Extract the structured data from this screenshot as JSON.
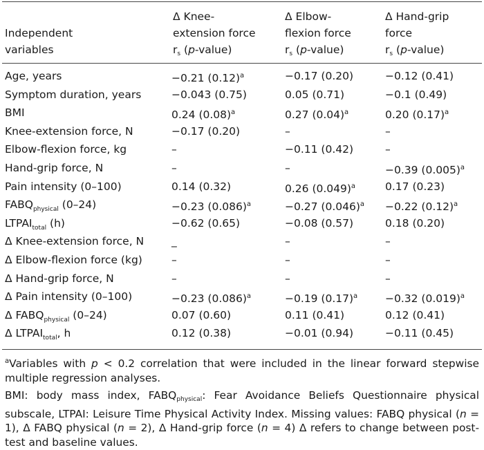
{
  "header": {
    "col0": [
      "Independent",
      "variables"
    ],
    "col1": [
      "Δ Knee-",
      "extension force"
    ],
    "col2": [
      "Δ Elbow-",
      "flexion force"
    ],
    "col3": [
      "Δ Hand-grip",
      "force"
    ],
    "stat_r": "r",
    "stat_sub": "s",
    "stat_open": " (",
    "stat_p": "p",
    "stat_close": "-value)"
  },
  "rows": [
    {
      "label": "Age, years",
      "v1": "−0.21 (0.12)",
      "s1": "a",
      "v2": "−0.17 (0.20)",
      "s2": "",
      "v3": "−0.12 (0.41)",
      "s3": ""
    },
    {
      "label": "Symptom duration, years",
      "v1": "−0.043 (0.75)",
      "s1": "",
      "v2": "0.05 (0.71)",
      "s2": "",
      "v3": "−0.1 (0.49)",
      "s3": ""
    },
    {
      "label": "BMI",
      "v1": "0.24 (0.08)",
      "s1": "a",
      "v2": "0.27 (0.04)",
      "s2": "a",
      "v3": "0.20 (0.17)",
      "s3": "a"
    },
    {
      "label": "Knee-extension force, N",
      "v1": "−0.17 (0.20)",
      "s1": "",
      "v2": "–",
      "s2": "",
      "v3": "–",
      "s3": ""
    },
    {
      "label": "Elbow-flexion force, kg",
      "v1": "–",
      "s1": "",
      "v2": "−0.11 (0.42)",
      "s2": "",
      "v3": "–",
      "s3": ""
    },
    {
      "label": "Hand-grip force, N",
      "v1": "–",
      "s1": "",
      "v2": "–",
      "s2": "",
      "v3": "−0.39 (0.005)",
      "s3": "a"
    },
    {
      "label": "Pain intensity (0–100)",
      "v1": "0.14 (0.32)",
      "s1": "",
      "v2": "0.26 (0.049)",
      "s2": "a",
      "v3": "0.17 (0.23)",
      "s3": ""
    },
    {
      "label": "FABQ",
      "label_sub": "physical",
      "label_after": " (0–24)",
      "v1": "−0.23 (0.086)",
      "s1": "a",
      "v2": "−0.27 (0.046)",
      "s2": "a",
      "v3": "−0.22 (0.12)",
      "s3": "a"
    },
    {
      "label": "LTPAI",
      "label_sub": "total",
      "label_after": " (h)",
      "v1": "−0.62 (0.65)",
      "s1": "",
      "v2": "−0.08 (0.57)",
      "s2": "",
      "v3": "0.18 (0.20)",
      "s3": ""
    },
    {
      "label": "Δ Knee-extension force, N",
      "v1": "_",
      "s1": "",
      "v2": "–",
      "s2": "",
      "v3": "–",
      "s3": ""
    },
    {
      "label": "Δ Elbow-flexion force (kg)",
      "v1": "–",
      "s1": "",
      "v2": "–",
      "s2": "",
      "v3": "–",
      "s3": ""
    },
    {
      "label": "Δ Hand-grip force, N",
      "v1": "–",
      "s1": "",
      "v2": "–",
      "s2": "",
      "v3": "–",
      "s3": ""
    },
    {
      "label": "Δ Pain intensity (0–100)",
      "v1": "−0.23 (0.086)",
      "s1": "a",
      "v2": "−0.19 (0.17)",
      "s2": "a",
      "v3": "−0.32 (0.019)",
      "s3": "a"
    },
    {
      "label": "Δ FABQ",
      "label_sub": "physical",
      "label_after": " (0–24)",
      "v1": "0.07 (0.60)",
      "s1": "",
      "v2": "0.11 (0.41)",
      "s2": "",
      "v3": "0.12 (0.41)",
      "s3": ""
    },
    {
      "label": "Δ LTPAI",
      "label_sub": "total",
      "label_after": ", h",
      "v1": "0.12 (0.38)",
      "s1": "",
      "v2": "−0.01 (0.94)",
      "s2": "",
      "v3": "−0.11 (0.45)",
      "s3": ""
    }
  ],
  "footnotes": {
    "a_mark": "a",
    "a_text_1": "Variables with ",
    "a_p": "p",
    "a_text_2": " < 0.2 correlation that were included in the linear forward stepwise multiple regression analyses.",
    "abbr_1": "BMI: body mass index, FABQ",
    "abbr_sub": "physical",
    "abbr_2": ": Fear Avoidance Beliefs Questionnaire physical subscale, LTPAI: Leisure Time Physical Activity Index. Missing values: FABQ physical (",
    "n1": "n",
    "abbr_3": " = 1), Δ FABQ physical (",
    "n2": "n",
    "abbr_4": " = 2), Δ Hand-grip force (",
    "n3": "n",
    "abbr_5": " = 4) Δ refers to change between post-test and baseline values."
  }
}
